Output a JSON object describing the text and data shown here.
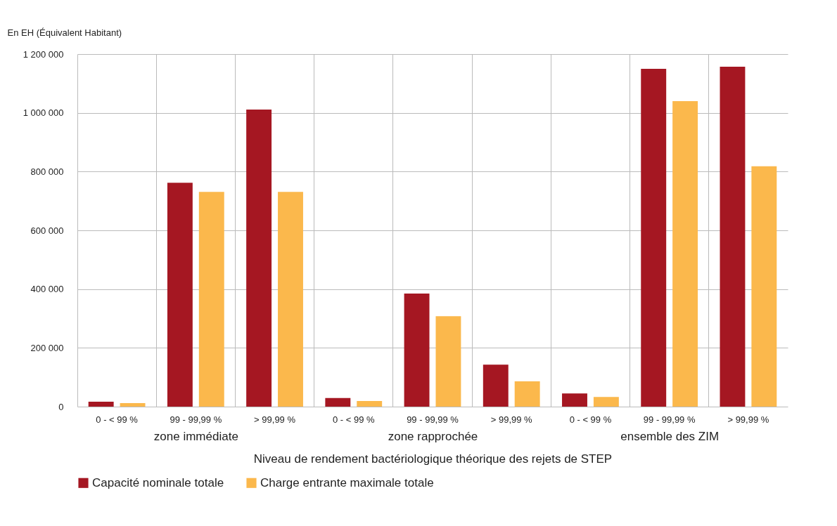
{
  "chart_data": {
    "type": "bar",
    "xlabel": "Niveau de rendement bactériologique théorique des rejets de STEP",
    "ylabel": "En EH (Équivalent Habitant)",
    "categories": [
      "0 - < 99 %",
      "99 - 99,99 %",
      "> 99,99 %",
      "0 - < 99 %",
      "99 - 99,99 %",
      "> 99,99 %",
      "0 - < 99 %",
      "99 - 99,99 %",
      "> 99,99 %"
    ],
    "annotations": [
      "zone immédiate",
      "zone rapprochée",
      "ensemble des ZIM"
    ],
    "series": [
      {
        "name": "Capacité nominale totale",
        "color": "#a51722",
        "values": [
          17000,
          762000,
          1011000,
          29000,
          385000,
          143000,
          45000,
          1150000,
          1157000
        ]
      },
      {
        "name": "Charge entrante maximale totale",
        "color": "#fbb84c",
        "values": [
          12000,
          731000,
          731000,
          19000,
          308000,
          86000,
          33000,
          1040000,
          818000
        ]
      }
    ],
    "ylim": [
      0,
      1200000
    ],
    "yticks": [
      {
        "value": 0,
        "label": "0"
      },
      {
        "value": 200000,
        "label": "200 000"
      },
      {
        "value": 400000,
        "label": "400 000"
      },
      {
        "value": 600000,
        "label": "600 000"
      },
      {
        "value": 800000,
        "label": "800 000"
      },
      {
        "value": 1000000,
        "label": "1 000 000"
      },
      {
        "value": 1200000,
        "label": "1 200 000"
      }
    ],
    "grid": true,
    "legend": "bottom"
  }
}
